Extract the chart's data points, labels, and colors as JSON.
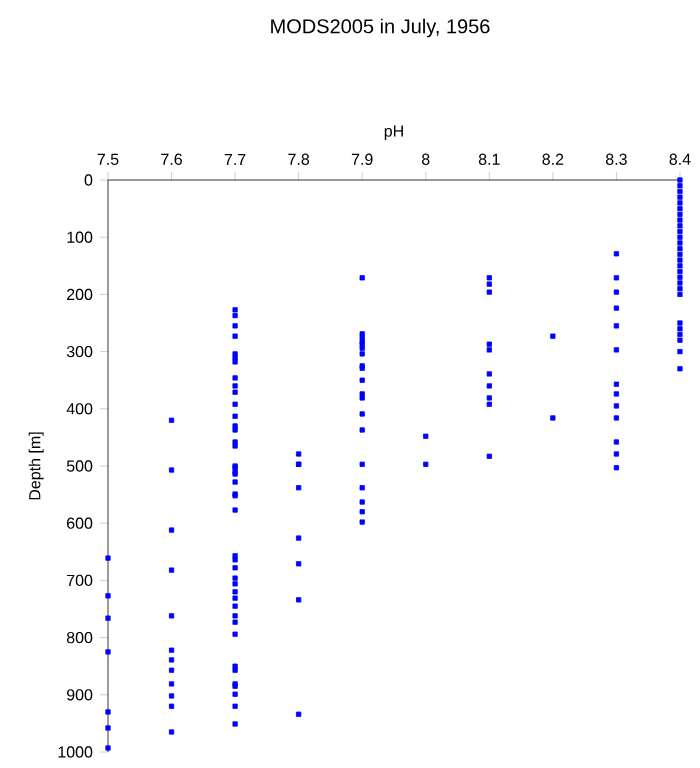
{
  "chart_data": {
    "type": "scatter",
    "title": "MODS2005 in July, 1956",
    "xlabel": "pH",
    "ylabel": "Depth [m]",
    "xlim": [
      7.5,
      8.4
    ],
    "xticks": [
      7.5,
      7.6,
      7.7,
      7.8,
      7.9,
      8,
      8.1,
      8.2,
      8.3,
      8.4
    ],
    "ylim": [
      1000,
      0
    ],
    "yticks": [
      0,
      100,
      200,
      300,
      400,
      500,
      600,
      700,
      800,
      900,
      1000
    ],
    "marker": "square",
    "series": [
      {
        "color": "#0000ff",
        "x": [
          7.5,
          7.5,
          7.5,
          7.5,
          7.5,
          7.5,
          7.5,
          7.6,
          7.6,
          7.6,
          7.6,
          7.6,
          7.6,
          7.6,
          7.6,
          7.6,
          7.6,
          7.6,
          7.6,
          7.7,
          7.7,
          7.7,
          7.7,
          7.7,
          7.7,
          7.7,
          7.7,
          7.7,
          7.7,
          7.7,
          7.7,
          7.7,
          7.7,
          7.7,
          7.7,
          7.7,
          7.7,
          7.7,
          7.7,
          7.7,
          7.7,
          7.7,
          7.7,
          7.7,
          7.7,
          7.7,
          7.7,
          7.7,
          7.7,
          7.7,
          7.7,
          7.7,
          7.7,
          7.7,
          7.7,
          7.7,
          7.7,
          7.7,
          7.7,
          7.7,
          7.7,
          7.8,
          7.8,
          7.8,
          7.8,
          7.8,
          7.8,
          7.8,
          7.8,
          7.9,
          7.9,
          7.9,
          7.9,
          7.9,
          7.9,
          7.9,
          7.9,
          7.9,
          7.9,
          7.9,
          7.9,
          7.9,
          7.9,
          7.9,
          7.9,
          7.9,
          7.9,
          7.9,
          8,
          8,
          8.1,
          8.1,
          8.1,
          8.1,
          8.1,
          8.1,
          8.1,
          8.1,
          8.1,
          8.1,
          8.2,
          8.2,
          8.3,
          8.3,
          8.3,
          8.3,
          8.3,
          8.3,
          8.3,
          8.3,
          8.3,
          8.3,
          8.3,
          8.3,
          8.3,
          8.4,
          8.4,
          8.4,
          8.4,
          8.4,
          8.4,
          8.4,
          8.4,
          8.4,
          8.4,
          8.4,
          8.4,
          8.4,
          8.4,
          8.4,
          8.4,
          8.4,
          8.4,
          8.4,
          8.4,
          8.4,
          8.4,
          8.4,
          8.4,
          8.4,
          8.4,
          8.4
        ],
        "values": [
          661,
          727,
          766,
          825,
          930,
          958,
          993,
          420,
          507,
          612,
          682,
          762,
          822,
          839,
          857,
          881,
          902,
          920,
          965,
          227,
          255,
          273,
          304,
          311,
          318,
          346,
          360,
          371,
          392,
          413,
          430,
          437,
          458,
          465,
          500,
          514,
          528,
          549,
          552,
          577,
          657,
          664,
          678,
          696,
          706,
          720,
          731,
          745,
          762,
          773,
          794,
          850,
          857,
          881,
          885,
          899,
          920,
          951,
          503,
          510,
          237,
          479,
          497,
          538,
          626,
          671,
          734,
          934,
          497,
          171,
          269,
          276,
          283,
          287,
          294,
          304,
          325,
          329,
          350,
          374,
          381,
          409,
          437,
          497,
          538,
          563,
          580,
          598,
          448,
          497,
          171,
          182,
          196,
          287,
          297,
          339,
          360,
          381,
          392,
          483,
          273,
          416,
          129,
          171,
          196,
          224,
          255,
          297,
          357,
          374,
          395,
          416,
          458,
          479,
          503,
          0,
          10,
          20,
          30,
          40,
          50,
          60,
          70,
          80,
          90,
          100,
          110,
          120,
          130,
          140,
          150,
          160,
          170,
          180,
          190,
          200,
          250,
          260,
          270,
          280,
          300,
          330
        ]
      }
    ]
  }
}
